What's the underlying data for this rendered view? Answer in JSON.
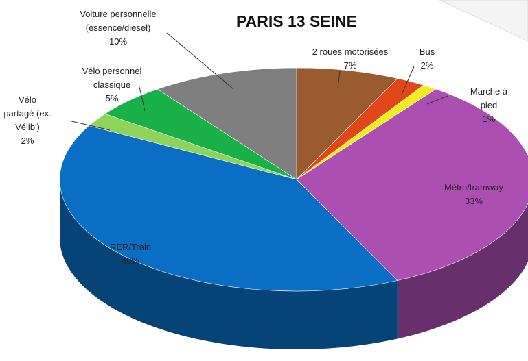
{
  "chart_data": {
    "type": "pie3d",
    "title": "PARIS 13 SEINE",
    "categories": [
      "2 roues motorisées",
      "Bus",
      "Marche à pied",
      "Métro/tramway",
      "RER/Train",
      "Vélo\npartagé (ex.\nVélib')",
      "Vélo personnel\nclassique",
      "Voiture personnelle\n(essence/diesel)"
    ],
    "values": [
      7,
      2,
      1,
      33,
      40,
      2,
      5,
      10
    ],
    "value_labels": [
      "7%",
      "2%",
      "1%",
      "33%",
      "40%",
      "2%",
      "5%",
      "10%"
    ],
    "colors": [
      "#9a5b2e",
      "#e0481a",
      "#f2ee1c",
      "#ab4fb3",
      "#0a6fc4",
      "#8fd45a",
      "#19b04a",
      "#7f7f7f"
    ]
  }
}
